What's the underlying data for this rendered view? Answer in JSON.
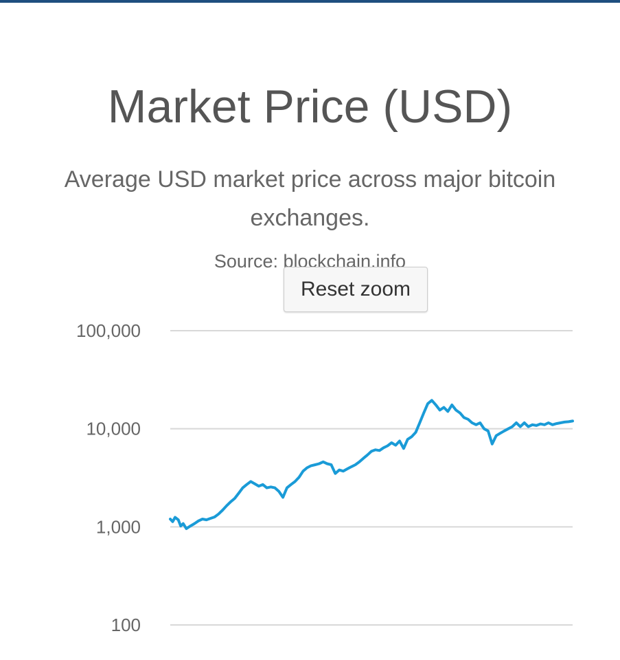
{
  "chart_data": {
    "type": "line",
    "title": "Market Price (USD)",
    "subtitle": "Average USD market price across major bitcoin exchanges.",
    "credits": "Source: blockchain.info",
    "reset_zoom_label": "Reset zoom",
    "xlabel": "",
    "ylabel": "",
    "y_scale": "log",
    "ylim": [
      100,
      100000
    ],
    "y_ticks": [
      100000,
      10000,
      1000,
      100
    ],
    "y_tick_labels": [
      "100,000",
      "10,000",
      "1,000",
      "100"
    ],
    "grid": true,
    "legend": "none",
    "series": [
      {
        "color": "#1a9bd7",
        "x": [
          0,
          0.6,
          1.2,
          2,
          2.6,
          3.2,
          4,
          5,
          6,
          7,
          8,
          9,
          10,
          11,
          12,
          13,
          14,
          15,
          16,
          17,
          18,
          19,
          20,
          21,
          22,
          23,
          24,
          25,
          26,
          27,
          28,
          29,
          30,
          31,
          32,
          33,
          34,
          35,
          36,
          37,
          38,
          39,
          40,
          41,
          42,
          43,
          44,
          45,
          46,
          47,
          48,
          49,
          50,
          51,
          52,
          53,
          54,
          55,
          56,
          57,
          58,
          59,
          60,
          61,
          62,
          63,
          64,
          65,
          66,
          67,
          68,
          69,
          70,
          71,
          72,
          73,
          74,
          75,
          76,
          77,
          78,
          79,
          80,
          81,
          82,
          83,
          84,
          85,
          86,
          87,
          88,
          89,
          90,
          91,
          92,
          93,
          94,
          95,
          96,
          97,
          98,
          99,
          100
        ],
        "values": [
          1200,
          1130,
          1250,
          1180,
          1020,
          1080,
          960,
          1020,
          1080,
          1150,
          1200,
          1180,
          1220,
          1260,
          1350,
          1480,
          1640,
          1800,
          1950,
          2200,
          2500,
          2700,
          2900,
          2750,
          2600,
          2700,
          2500,
          2550,
          2500,
          2300,
          2000,
          2500,
          2700,
          2900,
          3200,
          3700,
          4000,
          4200,
          4300,
          4400,
          4600,
          4400,
          4300,
          3500,
          3800,
          3700,
          3900,
          4100,
          4300,
          4600,
          5000,
          5400,
          5900,
          6100,
          6000,
          6400,
          6700,
          7200,
          6800,
          7500,
          6300,
          7800,
          8300,
          9200,
          11500,
          14500,
          18000,
          19500,
          17500,
          15500,
          16500,
          15000,
          17500,
          15500,
          14500,
          13000,
          12500,
          11500,
          11000,
          11500,
          10000,
          9500,
          7000,
          8500,
          9000,
          9500,
          10000,
          10500,
          11500,
          10500,
          11500,
          10500,
          11000,
          10800,
          11200,
          11000,
          11500,
          11000,
          11300,
          11500,
          11700,
          11800,
          12000
        ]
      }
    ]
  }
}
